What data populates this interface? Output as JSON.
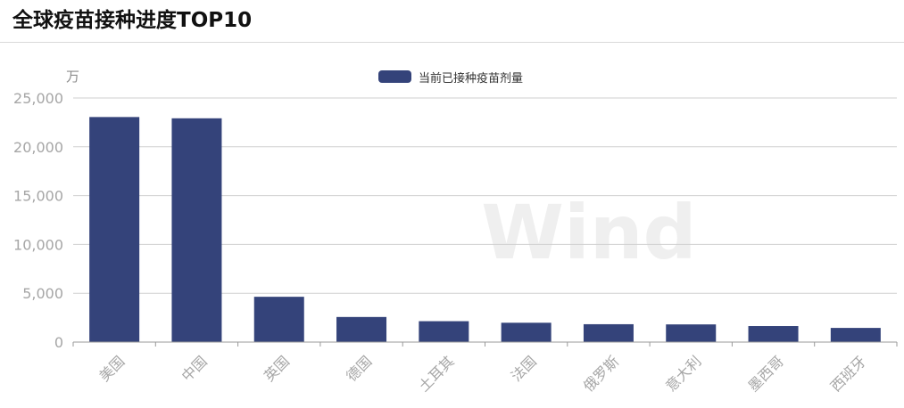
{
  "title": "全球疫苗接种进度TOP10",
  "chart_data": {
    "type": "bar",
    "title": "全球疫苗接种进度TOP10",
    "y_unit": "万",
    "ylim": [
      0,
      25000
    ],
    "yticks": [
      0,
      5000,
      10000,
      15000,
      20000,
      25000
    ],
    "ytick_labels": [
      "0",
      "5,000",
      "10,000",
      "15,000",
      "20,000",
      "25,000"
    ],
    "categories": [
      "美国",
      "中国",
      "英国",
      "德国",
      "土耳其",
      "法国",
      "俄罗斯",
      "意大利",
      "墨西哥",
      "西班牙"
    ],
    "series": [
      {
        "name": "当前已接种疫苗剂量",
        "color": "#34437a",
        "values": [
          23050,
          22920,
          4640,
          2570,
          2140,
          1980,
          1830,
          1810,
          1640,
          1450
        ]
      }
    ],
    "legend_position": "top-center",
    "grid": true,
    "watermark": "Wind"
  }
}
